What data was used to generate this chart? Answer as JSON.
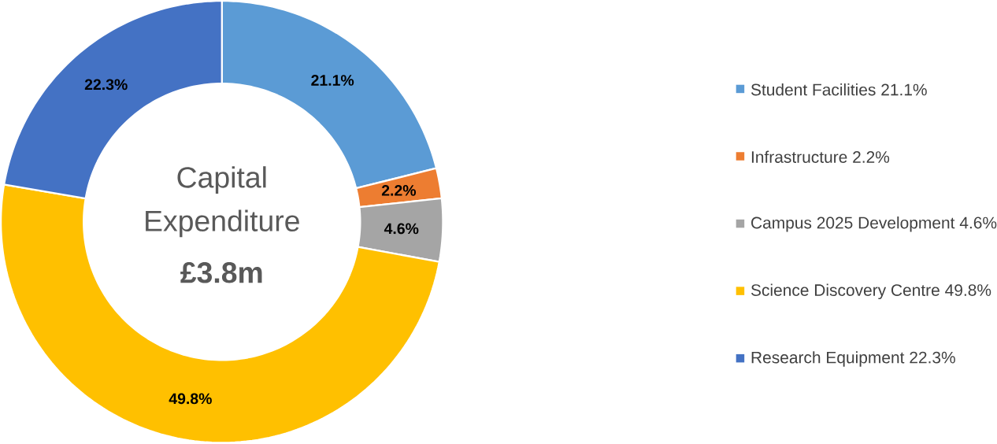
{
  "chart_data": {
    "type": "donut",
    "title": "Capital Expenditure",
    "subtitle": "£3.8m",
    "categories": [
      "Student Facilities",
      "Infrastructure",
      "Campus 2025 Development",
      "Science Discovery Centre",
      "Research Equipment"
    ],
    "values": [
      21.1,
      2.2,
      4.6,
      49.8,
      22.3
    ],
    "value_labels": [
      "21.1%",
      "2.2%",
      "4.6%",
      "49.8%",
      "22.3%"
    ],
    "colors": [
      "#5b9bd5",
      "#ed7d31",
      "#a5a5a5",
      "#ffc000",
      "#4472c4"
    ],
    "legend": "right"
  }
}
